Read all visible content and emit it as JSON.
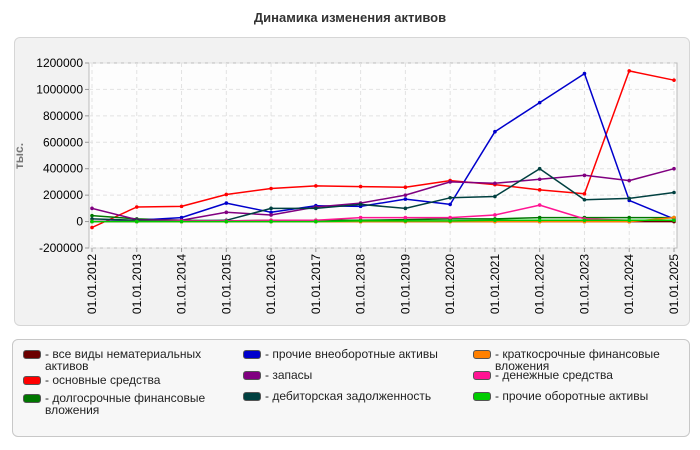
{
  "chart_data": {
    "type": "line",
    "title": "Динамика изменения активов",
    "ylabel": "тыс.",
    "xlabel": "",
    "ylim": [
      -200000,
      1200000
    ],
    "y_ticks": [
      1200000,
      1000000,
      800000,
      600000,
      400000,
      200000,
      0,
      -200000
    ],
    "categories": [
      "01.01.2012",
      "01.01.2013",
      "01.01.2014",
      "01.01.2015",
      "01.01.2016",
      "01.01.2017",
      "01.01.2018",
      "01.01.2019",
      "01.01.2020",
      "01.01.2021",
      "01.01.2022",
      "01.01.2023",
      "01.01.2024",
      "01.01.2025"
    ],
    "grid": true,
    "legend_position": "bottom",
    "series": [
      {
        "name": "все виды нематериальных активов",
        "color": "#6b0000",
        "values": [
          0,
          0,
          0,
          0,
          0,
          0,
          0,
          0,
          0,
          0,
          0,
          0,
          0,
          0
        ]
      },
      {
        "name": "основные средства",
        "color": "#ff0000",
        "values": [
          -45000,
          110000,
          115000,
          205000,
          250000,
          270000,
          265000,
          260000,
          310000,
          280000,
          240000,
          210000,
          1140000,
          1070000
        ]
      },
      {
        "name": "долгосрочные финансовые вложения",
        "color": "#007700",
        "values": [
          45000,
          20000,
          10000,
          5000,
          10000,
          10000,
          10000,
          15000,
          20000,
          20000,
          30000,
          30000,
          30000,
          30000
        ]
      },
      {
        "name": "прочие внеоборотные активы",
        "color": "#0000cc",
        "values": [
          0,
          10000,
          30000,
          140000,
          70000,
          120000,
          115000,
          170000,
          130000,
          680000,
          900000,
          1120000,
          160000,
          20000
        ]
      },
      {
        "name": "запасы",
        "color": "#800080",
        "values": [
          100000,
          15000,
          10000,
          70000,
          50000,
          110000,
          140000,
          200000,
          300000,
          290000,
          320000,
          350000,
          310000,
          400000
        ]
      },
      {
        "name": "дебиторская задолженность",
        "color": "#004040",
        "values": [
          20000,
          10000,
          5000,
          10000,
          100000,
          100000,
          130000,
          100000,
          180000,
          190000,
          400000,
          165000,
          175000,
          220000
        ]
      },
      {
        "name": "краткосрочные финансовые вложения",
        "color": "#ff8000",
        "values": [
          0,
          0,
          0,
          0,
          0,
          0,
          0,
          0,
          0,
          0,
          0,
          0,
          0,
          30000
        ]
      },
      {
        "name": "денежные средства",
        "color": "#ff1493",
        "values": [
          0,
          0,
          5000,
          5000,
          10000,
          10000,
          30000,
          30000,
          30000,
          50000,
          125000,
          20000,
          10000,
          10000
        ]
      },
      {
        "name": "прочие оборотные активы",
        "color": "#00cc00",
        "values": [
          0,
          0,
          0,
          0,
          0,
          0,
          5000,
          5000,
          5000,
          10000,
          10000,
          10000,
          10000,
          10000
        ]
      }
    ]
  }
}
